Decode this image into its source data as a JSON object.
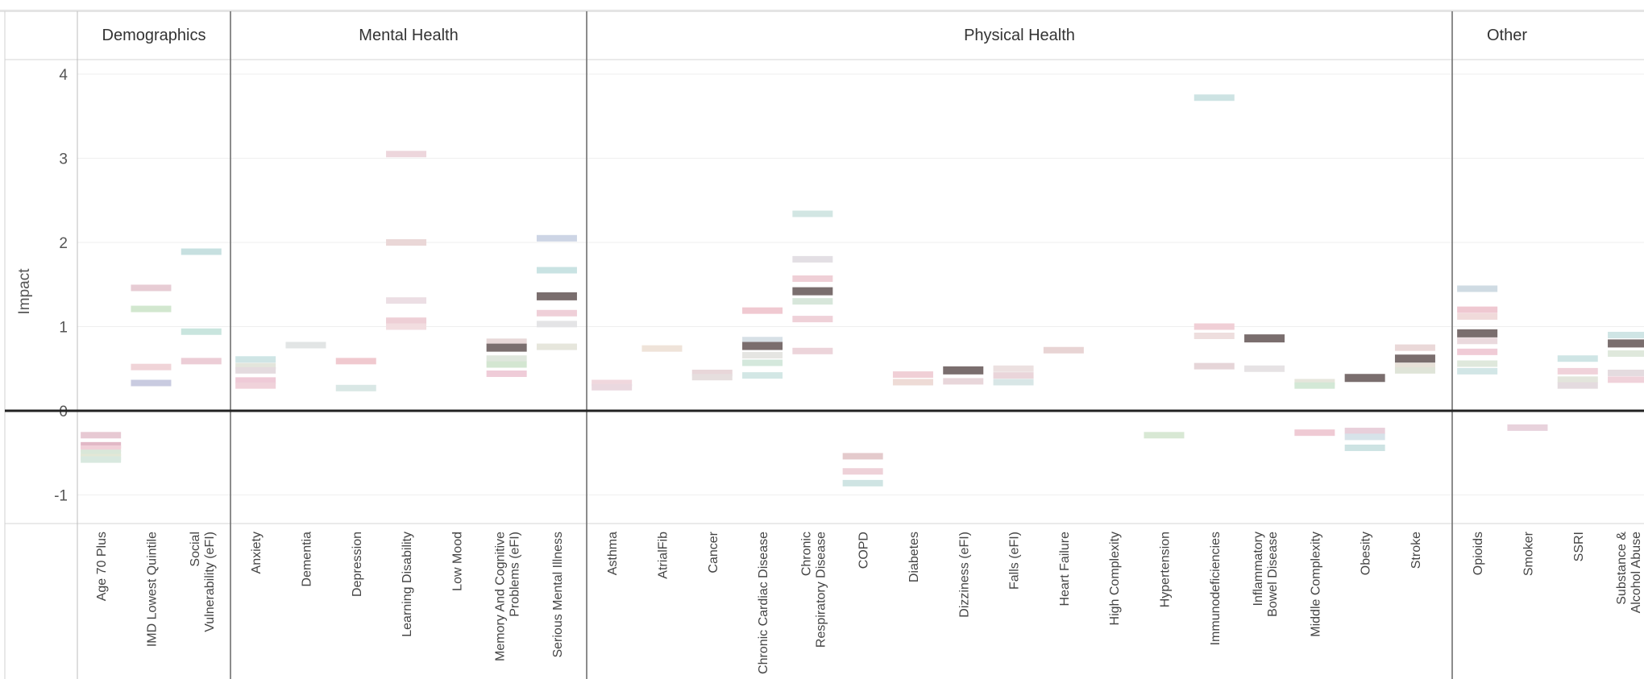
{
  "chart_data": {
    "type": "table",
    "ylabel": "Impact",
    "ylim": [
      -1.35,
      4.1
    ],
    "yticks": [
      -1,
      0,
      1,
      2,
      3,
      4
    ],
    "groups": [
      {
        "name": "Demographics",
        "categories": [
          {
            "label": "Age 70 Plus",
            "values": [
              {
                "v": -0.29,
                "c": "#e7c9d3"
              },
              {
                "v": -0.41,
                "c": "#e2b8c6"
              },
              {
                "v": -0.45,
                "c": "#f1d0d8"
              },
              {
                "v": -0.5,
                "c": "#d9e7d9"
              },
              {
                "v": -0.55,
                "c": "#e3e7d6"
              },
              {
                "v": -0.58,
                "c": "#d8e8df"
              }
            ]
          },
          {
            "label": "IMD Lowest Quintile",
            "values": [
              {
                "v": 1.46,
                "c": "#e7ccd4"
              },
              {
                "v": 1.21,
                "c": "#d2e7cf"
              },
              {
                "v": 0.52,
                "c": "#f0d4d8"
              },
              {
                "v": 0.33,
                "c": "#c9cbe0"
              }
            ]
          },
          {
            "label": "Social Vulnerability (eFI)",
            "values": [
              {
                "v": 1.89,
                "c": "#c7e0e0"
              },
              {
                "v": 0.94,
                "c": "#c9e5de"
              },
              {
                "v": 0.59,
                "c": "#eccdd6"
              }
            ]
          }
        ]
      },
      {
        "name": "Mental Health",
        "categories": [
          {
            "label": "Anxiety",
            "values": [
              {
                "v": 0.61,
                "c": "#cfe5e5"
              },
              {
                "v": 0.53,
                "c": "#e3e5dc"
              },
              {
                "v": 0.48,
                "c": "#e4dbdf"
              },
              {
                "v": 0.36,
                "c": "#efcad7"
              },
              {
                "v": 0.3,
                "c": "#f0d2da"
              }
            ]
          },
          {
            "label": "Dementia",
            "values": [
              {
                "v": 0.78,
                "c": "#e2e5e5"
              }
            ]
          },
          {
            "label": "Depression",
            "values": [
              {
                "v": 0.59,
                "c": "#f0c9cf"
              },
              {
                "v": 0.27,
                "c": "#d9e7e5"
              }
            ]
          },
          {
            "label": "Learning Disability",
            "values": [
              {
                "v": 3.05,
                "c": "#edd6dc"
              },
              {
                "v": 2.0,
                "c": "#ead7d7"
              },
              {
                "v": 1.31,
                "c": "#ecdee4"
              },
              {
                "v": 1.07,
                "c": "#eecfd6"
              },
              {
                "v": 1.0,
                "c": "#f2dde0"
              }
            ]
          },
          {
            "label": "Low Mood",
            "values": []
          },
          {
            "label": "Memory And Cognitive Problems (eFI)",
            "values": [
              {
                "v": 0.82,
                "c": "#e8d8d8"
              },
              {
                "v": 0.75,
                "c": "#7a6e6e"
              },
              {
                "v": 0.62,
                "c": "#dfe7dd"
              },
              {
                "v": 0.55,
                "c": "#d3e6d1"
              },
              {
                "v": 0.44,
                "c": "#efccd8"
              }
            ]
          },
          {
            "label": "Serious Mental Illness",
            "values": [
              {
                "v": 2.05,
                "c": "#cdd5e5"
              },
              {
                "v": 1.67,
                "c": "#c9e3e3"
              },
              {
                "v": 1.36,
                "c": "#7a6e6e"
              },
              {
                "v": 1.16,
                "c": "#efcfd8"
              },
              {
                "v": 1.03,
                "c": "#e4e4e6"
              },
              {
                "v": 0.76,
                "c": "#e6e6dc"
              }
            ]
          }
        ]
      },
      {
        "name": "Physical Health",
        "categories": [
          {
            "label": "Asthma",
            "values": [
              {
                "v": 0.33,
                "c": "#f0d7dd"
              },
              {
                "v": 0.28,
                "c": "#ead8df"
              }
            ]
          },
          {
            "label": "AtrialFib",
            "values": [
              {
                "v": 0.74,
                "c": "#efe3d9"
              }
            ]
          },
          {
            "label": "Cancer",
            "values": [
              {
                "v": 0.45,
                "c": "#e8d6d9"
              },
              {
                "v": 0.4,
                "c": "#e6dede"
              }
            ]
          },
          {
            "label": "Chronic Cardiac Disease",
            "values": [
              {
                "v": 1.19,
                "c": "#f0c9d1"
              },
              {
                "v": 0.84,
                "c": "#d7e0e6"
              },
              {
                "v": 0.77,
                "c": "#7a6e6e"
              },
              {
                "v": 0.66,
                "c": "#e5e5e2"
              },
              {
                "v": 0.57,
                "c": "#d4e8dc"
              },
              {
                "v": 0.42,
                "c": "#d3e7e5"
              }
            ]
          },
          {
            "label": "Chronic Respiratory Disease",
            "values": [
              {
                "v": 2.34,
                "c": "#d2e6e3"
              },
              {
                "v": 1.8,
                "c": "#e3dfe4"
              },
              {
                "v": 1.57,
                "c": "#efcfd6"
              },
              {
                "v": 1.42,
                "c": "#7a6e6e"
              },
              {
                "v": 1.3,
                "c": "#d7e6da"
              },
              {
                "v": 1.09,
                "c": "#efd1d8"
              },
              {
                "v": 0.71,
                "c": "#ecd4da"
              }
            ]
          },
          {
            "label": "COPD",
            "values": [
              {
                "v": -0.54,
                "c": "#e4cacc"
              },
              {
                "v": -0.72,
                "c": "#eed1d8"
              },
              {
                "v": -0.86,
                "c": "#cfe4e3"
              }
            ]
          },
          {
            "label": "Diabetes",
            "values": [
              {
                "v": 0.43,
                "c": "#f0cfd6"
              },
              {
                "v": 0.34,
                "c": "#eedbd6"
              }
            ]
          },
          {
            "label": "Dizziness (eFI)",
            "values": [
              {
                "v": 0.48,
                "c": "#7a6e6e"
              },
              {
                "v": 0.35,
                "c": "#e8d6da"
              }
            ]
          },
          {
            "label": "Falls (eFI)",
            "values": [
              {
                "v": 0.5,
                "c": "#ece0e0"
              },
              {
                "v": 0.42,
                "c": "#ead5da"
              },
              {
                "v": 0.34,
                "c": "#d8e6e6"
              }
            ]
          },
          {
            "label": "Heart Failure",
            "values": [
              {
                "v": 0.72,
                "c": "#e8d4d4"
              }
            ]
          },
          {
            "label": "High Complexity",
            "values": []
          },
          {
            "label": "Hypertension",
            "values": [
              {
                "v": -0.29,
                "c": "#d8e8d4"
              }
            ]
          },
          {
            "label": "Immunodeficiencies",
            "values": [
              {
                "v": 3.72,
                "c": "#cde3e3"
              },
              {
                "v": 1.0,
                "c": "#f0cfd6"
              },
              {
                "v": 0.89,
                "c": "#eedede"
              },
              {
                "v": 0.53,
                "c": "#e6d5d8"
              }
            ]
          },
          {
            "label": "Inflammatory Bowel Disease",
            "values": [
              {
                "v": 0.86,
                "c": "#7a6e6e"
              },
              {
                "v": 0.5,
                "c": "#e6e2e4"
              }
            ]
          },
          {
            "label": "Middle Complexity",
            "values": [
              {
                "v": 0.34,
                "c": "#e6e6dc"
              },
              {
                "v": 0.3,
                "c": "#d3e8d6"
              },
              {
                "v": -0.26,
                "c": "#efcad4"
              }
            ]
          },
          {
            "label": "Obesity",
            "values": [
              {
                "v": 0.39,
                "c": "#7a6e6e"
              },
              {
                "v": -0.24,
                "c": "#e8cfda"
              },
              {
                "v": -0.31,
                "c": "#d7e3e9"
              },
              {
                "v": -0.44,
                "c": "#cde3e3"
              }
            ]
          },
          {
            "label": "Stroke",
            "values": [
              {
                "v": 0.75,
                "c": "#ead8d8"
              },
              {
                "v": 0.62,
                "c": "#7a6e6e"
              },
              {
                "v": 0.53,
                "c": "#e7e1d8"
              },
              {
                "v": 0.48,
                "c": "#dfe4d8"
              }
            ]
          }
        ]
      },
      {
        "name": "Other",
        "categories": [
          {
            "label": "Opioids",
            "values": [
              {
                "v": 1.45,
                "c": "#cfdbe3"
              },
              {
                "v": 1.2,
                "c": "#efc8d1"
              },
              {
                "v": 1.12,
                "c": "#f0dada"
              },
              {
                "v": 0.92,
                "c": "#7a6e6e"
              },
              {
                "v": 0.83,
                "c": "#ead9dd"
              },
              {
                "v": 0.7,
                "c": "#f0cbd6"
              },
              {
                "v": 0.56,
                "c": "#dfe8dc"
              },
              {
                "v": 0.47,
                "c": "#d2e6e6"
              }
            ]
          },
          {
            "label": "Smoker",
            "values": [
              {
                "v": -0.2,
                "c": "#e8d2dc"
              }
            ]
          },
          {
            "label": "SSRI",
            "values": [
              {
                "v": 0.62,
                "c": "#cfe5e5"
              },
              {
                "v": 0.47,
                "c": "#f0d2da"
              },
              {
                "v": 0.37,
                "c": "#e3e5dc"
              },
              {
                "v": 0.3,
                "c": "#e4dbdf"
              }
            ]
          },
          {
            "label": "Substance & Alcohol Abuse",
            "values": [
              {
                "v": 0.9,
                "c": "#cfe5e5"
              },
              {
                "v": 0.8,
                "c": "#7a6e6e"
              },
              {
                "v": 0.68,
                "c": "#dfe8dc"
              },
              {
                "v": 0.45,
                "c": "#e4dbdf"
              },
              {
                "v": 0.37,
                "c": "#f0d2da"
              }
            ]
          }
        ]
      }
    ]
  }
}
